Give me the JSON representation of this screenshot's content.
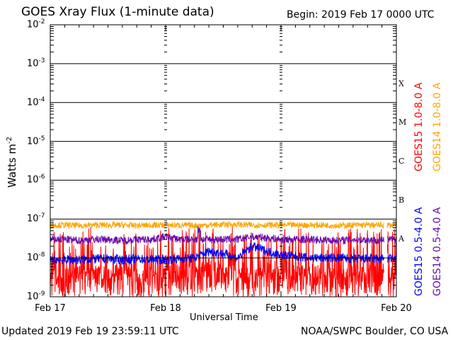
{
  "header": {
    "title": "GOES Xray Flux (1-minute data)",
    "begin": "Begin:  2019 Feb 17 0000 UTC"
  },
  "footer": {
    "updated": "Updated 2019 Feb 19 23:59:11 UTC",
    "credit": "NOAA/SWPC Boulder, CO USA"
  },
  "chart_data": {
    "type": "line",
    "title": "GOES Xray Flux (1-minute data)",
    "xlabel": "Universal Time",
    "ylabel": "Watts m",
    "ylabel_sup": "-2",
    "yscale": "log",
    "ylim": [
      1e-09,
      0.01
    ],
    "xlim_hours": [
      0,
      72
    ],
    "x_ticks": [
      "Feb 17",
      "Feb 18",
      "Feb 19",
      "Feb 20"
    ],
    "y_ticks": [
      {
        "base": "10",
        "exp": "-2"
      },
      {
        "base": "10",
        "exp": "-3"
      },
      {
        "base": "10",
        "exp": "-4"
      },
      {
        "base": "10",
        "exp": "-5"
      },
      {
        "base": "10",
        "exp": "-6"
      },
      {
        "base": "10",
        "exp": "-7"
      },
      {
        "base": "10",
        "exp": "-8"
      },
      {
        "base": "10",
        "exp": "-9"
      }
    ],
    "flare_classes": [
      {
        "label": "X",
        "value": 0.0001
      },
      {
        "label": "M",
        "value": 1e-05
      },
      {
        "label": "C",
        "value": 1e-06
      },
      {
        "label": "B",
        "value": 1e-07
      },
      {
        "label": "A",
        "value": 1e-08
      }
    ],
    "x_hours": [
      0,
      3,
      6,
      9,
      12,
      15,
      18,
      21,
      24,
      27,
      30,
      33,
      36,
      39,
      42,
      45,
      48,
      51,
      54,
      57,
      60,
      63,
      66,
      69,
      72
    ],
    "series": [
      {
        "name": "GOES15 1.0-8.0 A",
        "color": "#ff0000",
        "values": [
          3e-09,
          2.5e-09,
          3e-09,
          4e-09,
          3e-09,
          3.5e-09,
          2.5e-09,
          3e-09,
          3e-09,
          3.5e-09,
          3e-09,
          4e-09,
          3.5e-09,
          3e-09,
          3e-09,
          2.5e-09,
          3e-09,
          3e-09,
          3.5e-09,
          3e-09,
          2.5e-09,
          3e-09,
          3e-09,
          3e-09,
          3e-09
        ]
      },
      {
        "name": "GOES14 1.0-8.0 A",
        "color": "#ffa500",
        "values": [
          7e-08,
          7e-08,
          6.8e-08,
          7e-08,
          7e-08,
          7e-08,
          6.8e-08,
          7e-08,
          7e-08,
          7e-08,
          6.8e-08,
          7e-08,
          7.2e-08,
          7.2e-08,
          7e-08,
          7e-08,
          7e-08,
          7e-08,
          7e-08,
          7e-08,
          6.8e-08,
          7e-08,
          7e-08,
          7e-08,
          7e-08
        ]
      },
      {
        "name": "GOES15 0.5-4.0 A",
        "color": "#0000ff",
        "values": [
          9e-09,
          9e-09,
          9e-09,
          9.5e-09,
          9.5e-09,
          9e-09,
          9.5e-09,
          9e-09,
          9e-09,
          9.5e-09,
          1e-08,
          1.5e-08,
          1.3e-08,
          1e-08,
          2e-08,
          1.5e-08,
          1.2e-08,
          1.1e-08,
          1e-08,
          1e-08,
          1e-08,
          9.5e-09,
          9.5e-09,
          9.5e-09,
          9.5e-09
        ]
      },
      {
        "name": "GOES14 0.5-4.0 A",
        "color": "#6a0dad",
        "values": [
          3e-08,
          3e-08,
          2.8e-08,
          3e-08,
          3e-08,
          2.8e-08,
          3e-08,
          3e-08,
          3.5e-08,
          3e-08,
          3e-08,
          3e-08,
          3e-08,
          3e-08,
          3.5e-08,
          3.3e-08,
          3e-08,
          3e-08,
          3e-08,
          2.9e-08,
          2.8e-08,
          3e-08,
          2.9e-08,
          2.9e-08,
          3e-08
        ]
      }
    ]
  }
}
